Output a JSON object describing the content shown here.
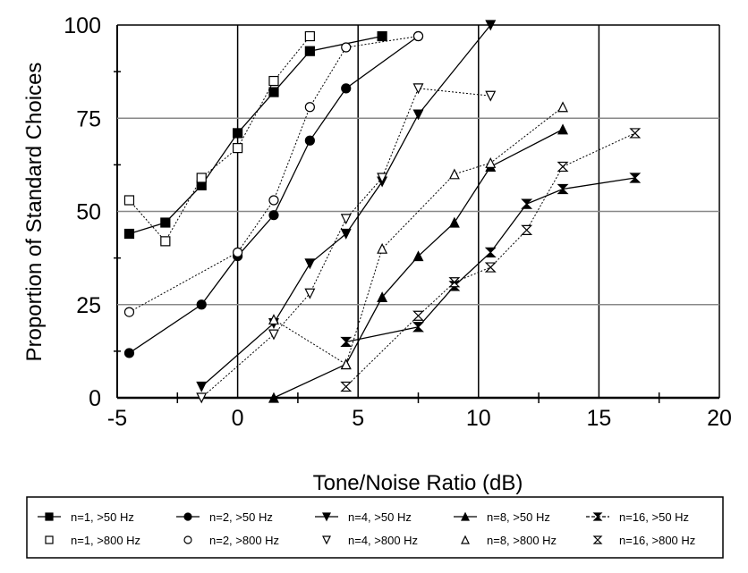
{
  "chart_data": {
    "type": "line",
    "title": "",
    "xlabel": "Tone/Noise Ratio (dB)",
    "ylabel": "Proportion of Standard Choices",
    "xlim": [
      -5,
      20
    ],
    "ylim": [
      0,
      100
    ],
    "xticks": [
      "-5",
      "0",
      "5",
      "10",
      "15",
      "20"
    ],
    "yticks": [
      "0",
      "25",
      "50",
      "75",
      "100"
    ],
    "grid": true,
    "legend_position": "bottom",
    "series": [
      {
        "name": "n=1, >50 Hz",
        "marker": "square-filled",
        "line": "solid",
        "points": [
          [
            -4.5,
            44
          ],
          [
            -3,
            47
          ],
          [
            -1.5,
            57
          ],
          [
            0,
            71
          ],
          [
            1.5,
            82
          ],
          [
            3,
            93
          ],
          [
            6,
            97
          ]
        ]
      },
      {
        "name": "n=2, >50 Hz",
        "marker": "circle-filled",
        "line": "solid",
        "points": [
          [
            -4.5,
            12
          ],
          [
            -1.5,
            25
          ],
          [
            0,
            38
          ],
          [
            1.5,
            49
          ],
          [
            3,
            69
          ],
          [
            4.5,
            83
          ],
          [
            7.5,
            97
          ]
        ]
      },
      {
        "name": "n=4, >50 Hz",
        "marker": "triangle-down-filled",
        "line": "solid",
        "points": [
          [
            -1.5,
            3
          ],
          [
            1.5,
            20
          ],
          [
            3,
            36
          ],
          [
            4.5,
            44
          ],
          [
            6,
            58
          ],
          [
            7.5,
            76
          ],
          [
            10.5,
            100
          ]
        ]
      },
      {
        "name": "n=8, >50 Hz",
        "marker": "triangle-up-filled",
        "line": "solid",
        "points": [
          [
            1.5,
            0
          ],
          [
            4.5,
            9
          ],
          [
            6,
            27
          ],
          [
            7.5,
            38
          ],
          [
            9,
            47
          ],
          [
            10.5,
            62
          ],
          [
            13.5,
            72
          ]
        ]
      },
      {
        "name": "n=16, >50 Hz",
        "marker": "hourglass-filled",
        "line": "solid",
        "points": [
          [
            4.5,
            15
          ],
          [
            7.5,
            19
          ],
          [
            9,
            30
          ],
          [
            10.5,
            39
          ],
          [
            12,
            52
          ],
          [
            13.5,
            56
          ],
          [
            16.5,
            59
          ]
        ]
      },
      {
        "name": "n=1, >800 Hz",
        "marker": "square-open",
        "line": "dotted",
        "points": [
          [
            -4.5,
            53
          ],
          [
            -3,
            42
          ],
          [
            -1.5,
            59
          ],
          [
            0,
            67
          ],
          [
            1.5,
            85
          ],
          [
            3,
            97
          ]
        ]
      },
      {
        "name": "n=2, >800 Hz",
        "marker": "circle-open",
        "line": "dotted",
        "points": [
          [
            -4.5,
            23
          ],
          [
            0,
            39
          ],
          [
            1.5,
            53
          ],
          [
            3,
            78
          ],
          [
            4.5,
            94
          ],
          [
            7.5,
            97
          ]
        ]
      },
      {
        "name": "n=4, >800 Hz",
        "marker": "triangle-down-open",
        "line": "dotted",
        "points": [
          [
            -1.5,
            0
          ],
          [
            1.5,
            17
          ],
          [
            3,
            28
          ],
          [
            4.5,
            48
          ],
          [
            6,
            59
          ],
          [
            7.5,
            83
          ],
          [
            10.5,
            81
          ]
        ]
      },
      {
        "name": "n=8, >800 Hz",
        "marker": "triangle-up-open",
        "line": "dotted",
        "points": [
          [
            1.5,
            21
          ],
          [
            4.5,
            9
          ],
          [
            6,
            40
          ],
          [
            9,
            60
          ],
          [
            10.5,
            63
          ],
          [
            13.5,
            78
          ]
        ]
      },
      {
        "name": "n=16, >800 Hz",
        "marker": "hourglass-open",
        "line": "dotted",
        "points": [
          [
            4.5,
            3
          ],
          [
            7.5,
            22
          ],
          [
            9,
            31
          ],
          [
            10.5,
            35
          ],
          [
            12,
            45
          ],
          [
            13.5,
            62
          ],
          [
            16.5,
            71
          ]
        ]
      }
    ]
  }
}
